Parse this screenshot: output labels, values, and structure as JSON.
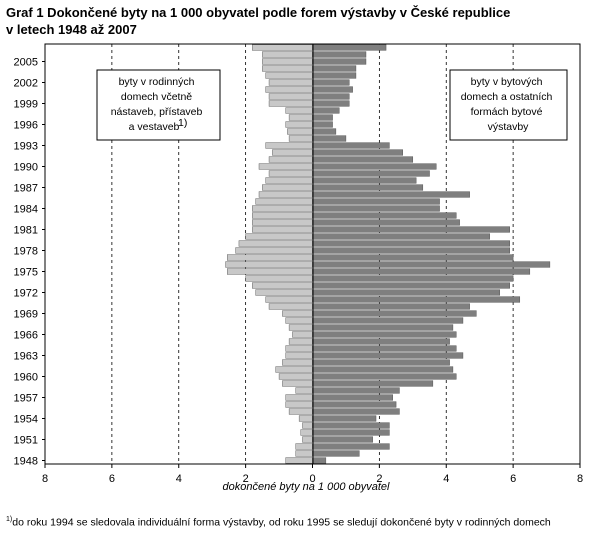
{
  "chart_data": {
    "type": "bar",
    "title_line1": "Graf 1 Dokončené byty na 1 000 obyvatel podle forem výstavby v České republice",
    "title_line2": "v letech 1948 až 2007",
    "xlabel": "dokončené byty na 1 000 obyvatel",
    "xticks": [
      "8",
      "6",
      "4",
      "2",
      "0",
      "2",
      "4",
      "6",
      "8"
    ],
    "xlim": [
      -8,
      8
    ],
    "ylim": [
      1948,
      2007
    ],
    "ytick_labels": [
      "1948",
      "1951",
      "1954",
      "1957",
      "1960",
      "1963",
      "1966",
      "1969",
      "1972",
      "1975",
      "1978",
      "1981",
      "1984",
      "1987",
      "1990",
      "1993",
      "1996",
      "1999",
      "2002",
      "2005"
    ],
    "years": [
      1948,
      1949,
      1950,
      1951,
      1952,
      1953,
      1954,
      1955,
      1956,
      1957,
      1958,
      1959,
      1960,
      1961,
      1962,
      1963,
      1964,
      1965,
      1966,
      1967,
      1968,
      1969,
      1970,
      1971,
      1972,
      1973,
      1974,
      1975,
      1976,
      1977,
      1978,
      1979,
      1980,
      1981,
      1982,
      1983,
      1984,
      1985,
      1986,
      1987,
      1988,
      1989,
      1990,
      1991,
      1992,
      1993,
      1994,
      1995,
      1996,
      1997,
      1998,
      1999,
      2000,
      2001,
      2002,
      2003,
      2004,
      2005,
      2006,
      2007
    ],
    "series": [
      {
        "name": "byty v rodinných domech včetně nástaveb, přístaveb a vestaveb",
        "side": "left",
        "color": "#c8c8c8",
        "values": [
          0.8,
          0.5,
          0.5,
          0.3,
          0.35,
          0.3,
          0.4,
          0.7,
          0.8,
          0.8,
          0.5,
          0.9,
          1.0,
          1.1,
          0.9,
          0.8,
          0.8,
          0.7,
          0.6,
          0.7,
          0.8,
          0.9,
          1.3,
          1.4,
          1.7,
          1.8,
          2.0,
          2.55,
          2.6,
          2.55,
          2.3,
          2.2,
          2.0,
          1.8,
          1.8,
          1.8,
          1.8,
          1.7,
          1.6,
          1.5,
          1.4,
          1.3,
          1.6,
          1.3,
          1.2,
          1.4,
          0.7,
          0.75,
          0.8,
          0.7,
          0.8,
          1.3,
          1.3,
          1.4,
          1.3,
          1.4,
          1.5,
          1.5,
          1.5,
          1.8
        ]
      },
      {
        "name": "byty v bytových domech a ostatních formách bytové výstavby",
        "side": "right",
        "color": "#7f7f7f",
        "values": [
          0.4,
          1.4,
          2.3,
          1.8,
          2.3,
          2.3,
          1.9,
          2.6,
          2.5,
          2.4,
          2.6,
          3.6,
          4.3,
          4.2,
          4.1,
          4.5,
          4.3,
          4.1,
          4.3,
          4.2,
          4.5,
          4.9,
          4.7,
          6.2,
          5.6,
          5.9,
          6.0,
          6.5,
          7.1,
          6.0,
          5.9,
          5.9,
          5.3,
          5.9,
          4.4,
          4.3,
          3.8,
          3.8,
          4.7,
          3.3,
          3.1,
          3.5,
          3.7,
          3.0,
          2.7,
          2.3,
          1.0,
          0.7,
          0.6,
          0.6,
          0.8,
          1.1,
          1.1,
          1.2,
          1.1,
          1.3,
          1.3,
          1.6,
          1.6,
          2.2
        ]
      }
    ],
    "annotation_left_lines": [
      "byty v rodinných",
      "domech včetně",
      "nástaveb, přístaveb",
      "a vestaveb"
    ],
    "annotation_left_sup": "1)",
    "annotation_right_lines": [
      "byty v bytových",
      "domech a ostatních",
      "formách bytové",
      "výstavby"
    ],
    "footnote_mark": "1)",
    "footnote_text": "do roku 1994 se sledovala individuální forma výstavby, od roku 1995 se sledují dokončené byty v rodinných domech",
    "grid": "vertical dashed"
  }
}
